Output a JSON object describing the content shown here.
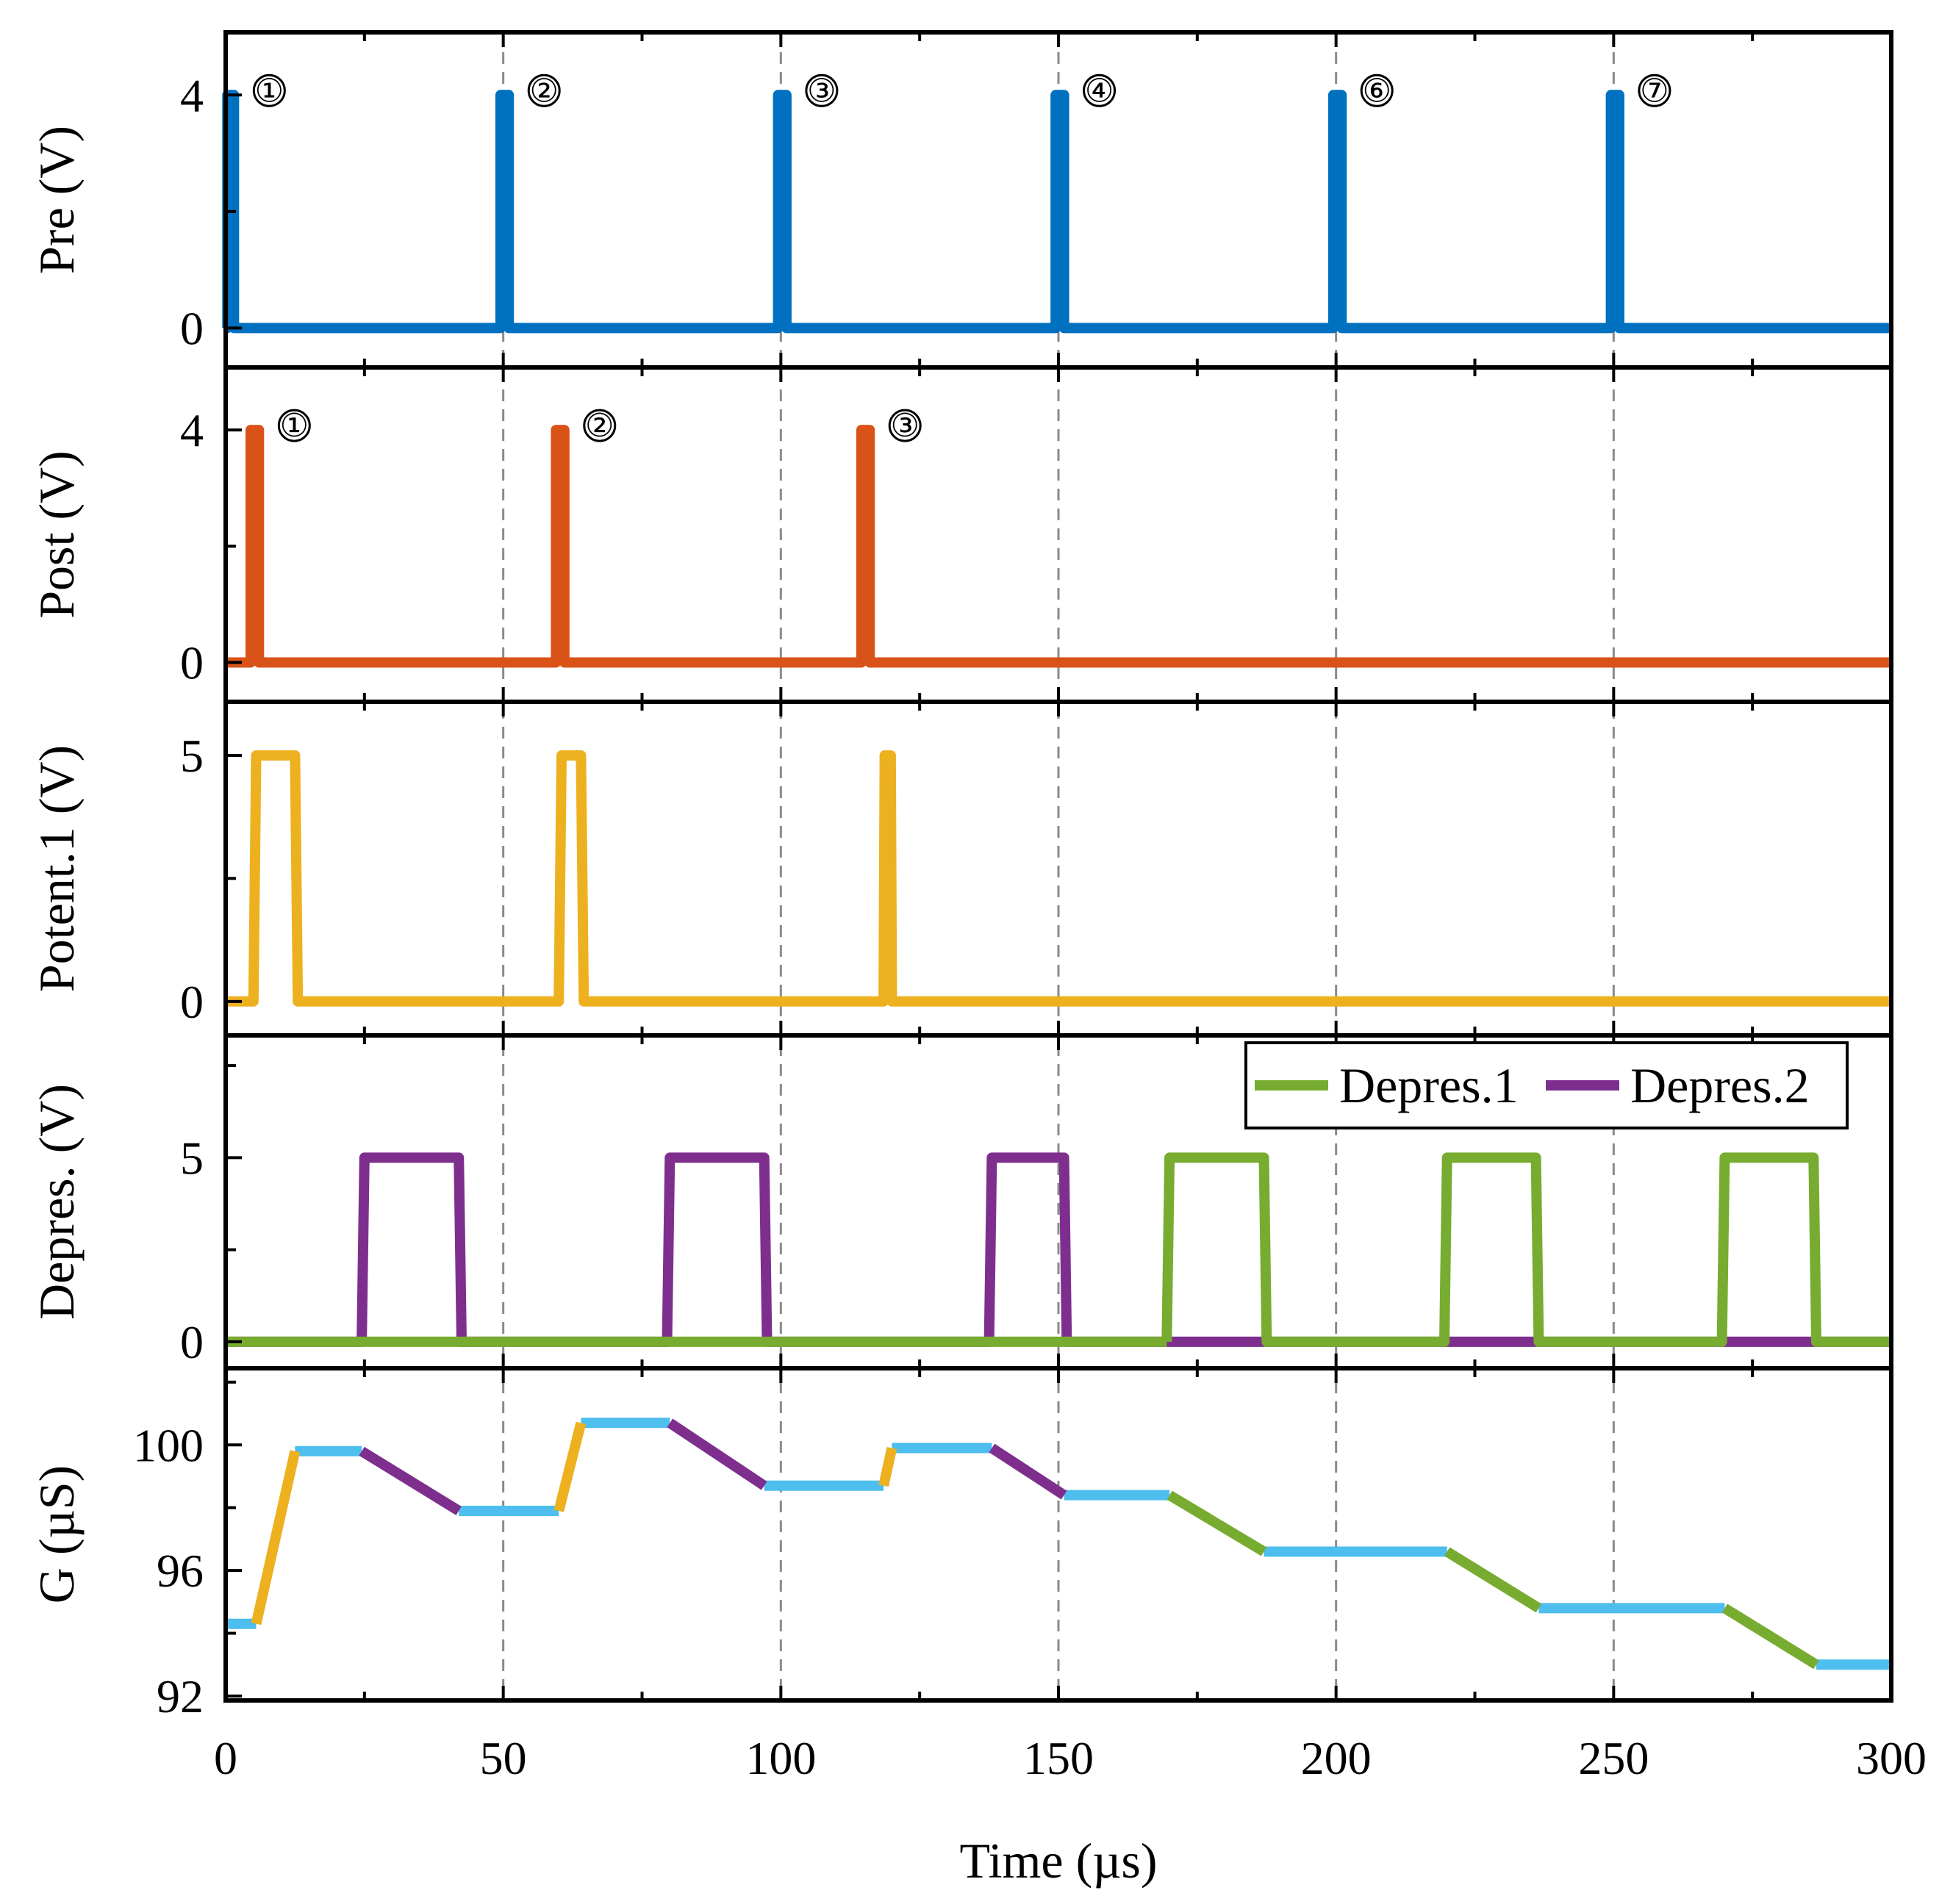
{
  "chart_data": {
    "type": "line",
    "x_axis": {
      "label": "Time (µs)",
      "range": [
        0,
        300
      ],
      "ticks": [
        0,
        50,
        100,
        150,
        200,
        250,
        300
      ],
      "tick_labels": [
        "0",
        "50",
        "100",
        "150",
        "200",
        "250",
        "300"
      ]
    },
    "dashed_verticals": [
      50,
      100,
      150,
      200,
      250
    ],
    "colors": {
      "pre": "#0070C0",
      "post": "#D95319",
      "potent": "#EDB120",
      "depres1": "#77AC30",
      "depres2": "#7E2F8E",
      "g_flat": "#4DBEEE"
    },
    "panels": [
      {
        "id": "pre",
        "ylabel": "Pre (V)",
        "ylim": [
          -0.6,
          5
        ],
        "yticks": [
          {
            "v": 0,
            "label": "0"
          },
          {
            "v": 4,
            "label": "4"
          }
        ],
        "minor_yticks": [
          2
        ],
        "series": [
          {
            "name": "Pre",
            "color_key": "pre",
            "points": [
              [
                0,
                0
              ],
              [
                0.3,
                0
              ],
              [
                0.3,
                4
              ],
              [
                1.5,
                4
              ],
              [
                1.5,
                0
              ],
              [
                49.5,
                0
              ],
              [
                49.5,
                4
              ],
              [
                51,
                4
              ],
              [
                51,
                0
              ],
              [
                99.5,
                0
              ],
              [
                99.5,
                4
              ],
              [
                101,
                4
              ],
              [
                101,
                0
              ],
              [
                149.5,
                0
              ],
              [
                149.5,
                4
              ],
              [
                151,
                4
              ],
              [
                151,
                0
              ],
              [
                199.5,
                0
              ],
              [
                199.5,
                4
              ],
              [
                201,
                4
              ],
              [
                201,
                0
              ],
              [
                249.5,
                0
              ],
              [
                249.5,
                4
              ],
              [
                251,
                4
              ],
              [
                251,
                0
              ],
              [
                300,
                0
              ]
            ]
          }
        ],
        "markers": [
          {
            "x": 1.5,
            "y": 4,
            "text": "①"
          },
          {
            "x": 51,
            "y": 4,
            "text": "②"
          },
          {
            "x": 101,
            "y": 4,
            "text": "③"
          },
          {
            "x": 151,
            "y": 4,
            "text": "④"
          },
          {
            "x": 201,
            "y": 4,
            "text": "⑥"
          },
          {
            "x": 251,
            "y": 4,
            "text": "⑦"
          }
        ]
      },
      {
        "id": "post",
        "ylabel": "Post (V)",
        "ylim": [
          -0.6,
          5
        ],
        "yticks": [
          {
            "v": 0,
            "label": "0"
          },
          {
            "v": 4,
            "label": "4"
          }
        ],
        "minor_yticks": [
          2
        ],
        "series": [
          {
            "name": "Post",
            "color_key": "post",
            "points": [
              [
                0,
                0
              ],
              [
                4.5,
                0
              ],
              [
                4.5,
                4
              ],
              [
                6,
                4
              ],
              [
                6,
                0
              ],
              [
                59.5,
                0
              ],
              [
                59.5,
                4
              ],
              [
                61,
                4
              ],
              [
                61,
                0
              ],
              [
                114.5,
                0
              ],
              [
                114.5,
                4
              ],
              [
                116,
                4
              ],
              [
                116,
                0
              ],
              [
                300,
                0
              ]
            ]
          }
        ],
        "markers": [
          {
            "x": 6,
            "y": 4,
            "text": "①"
          },
          {
            "x": 61,
            "y": 4,
            "text": "②"
          },
          {
            "x": 116,
            "y": 4,
            "text": "③"
          }
        ]
      },
      {
        "id": "potent",
        "ylabel": "Potent.1 (V)",
        "ylim": [
          -0.6,
          6
        ],
        "yticks": [
          {
            "v": 0,
            "label": "0"
          },
          {
            "v": 5,
            "label": "5"
          }
        ],
        "minor_yticks": [
          2.5
        ],
        "series": [
          {
            "name": "Potent.1",
            "color_key": "potent",
            "points": [
              [
                0,
                0
              ],
              [
                5,
                0
              ],
              [
                5.5,
                5
              ],
              [
                12.5,
                5
              ],
              [
                13,
                0
              ],
              [
                60,
                0
              ],
              [
                60.5,
                5
              ],
              [
                64,
                5
              ],
              [
                64.5,
                0
              ],
              [
                118.5,
                0
              ],
              [
                118.7,
                5
              ],
              [
                119.8,
                5
              ],
              [
                120,
                0
              ],
              [
                300,
                0
              ]
            ]
          }
        ],
        "markers": []
      },
      {
        "id": "depres",
        "ylabel": "Depres. (V)",
        "ylim": [
          -0.6,
          8.2
        ],
        "yticks": [
          {
            "v": 0,
            "label": "0"
          },
          {
            "v": 5,
            "label": "5"
          }
        ],
        "minor_yticks": [
          2.5,
          7.5
        ],
        "series": [
          {
            "name": "Depres.2",
            "color_key": "depres2",
            "points": [
              [
                0,
                0
              ],
              [
                24.5,
                0
              ],
              [
                25,
                5
              ],
              [
                42,
                5
              ],
              [
                42.5,
                0
              ],
              [
                79.5,
                0
              ],
              [
                80,
                5
              ],
              [
                97,
                5
              ],
              [
                97.5,
                0
              ],
              [
                137.5,
                0
              ],
              [
                138,
                5
              ],
              [
                151,
                5
              ],
              [
                151.5,
                0
              ],
              [
                300,
                0
              ]
            ]
          },
          {
            "name": "Depres.1",
            "color_key": "depres1",
            "segments": [
              [
                [
                  0,
                  0
                ],
                [
                  169.5,
                  0
                ]
              ],
              [
                [
                  169.5,
                  0
                ],
                [
                  170,
                  5
                ],
                [
                  187,
                  5
                ],
                [
                  187.5,
                  0
                ],
                [
                  219.5,
                  0
                ],
                [
                  220,
                  5
                ],
                [
                  236,
                  5
                ],
                [
                  236.5,
                  0
                ],
                [
                  269.5,
                  0
                ],
                [
                  270,
                  5
                ],
                [
                  286,
                  5
                ],
                [
                  286.5,
                  0
                ],
                [
                  300,
                  0
                ]
              ]
            ]
          }
        ],
        "markers": []
      },
      {
        "id": "g",
        "ylabel": "G (µS)",
        "ylim": [
          92,
          102.3
        ],
        "yticks": [
          {
            "v": 92,
            "label": "92"
          },
          {
            "v": 96,
            "label": "96"
          },
          {
            "v": 100,
            "label": "100"
          }
        ],
        "minor_yticks": [
          94,
          98,
          102
        ],
        "series": [
          {
            "name": "G-flat",
            "color_key": "g_flat",
            "segments": [
              [
                [
                  0,
                  94.3
                ],
                [
                  5.5,
                  94.3
                ]
              ],
              [
                [
                  12.5,
                  99.8
                ],
                [
                  24.5,
                  99.8
                ]
              ],
              [
                [
                  42,
                  97.9
                ],
                [
                  60,
                  97.9
                ]
              ],
              [
                [
                  64,
                  100.7
                ],
                [
                  80,
                  100.7
                ]
              ],
              [
                [
                  97,
                  98.7
                ],
                [
                  118.5,
                  98.7
                ]
              ],
              [
                [
                  120,
                  99.9
                ],
                [
                  138,
                  99.9
                ]
              ],
              [
                [
                  151,
                  98.4
                ],
                [
                  170,
                  98.4
                ]
              ],
              [
                [
                  187,
                  96.6
                ],
                [
                  220,
                  96.6
                ]
              ],
              [
                [
                  236.5,
                  94.8
                ],
                [
                  270,
                  94.8
                ]
              ],
              [
                [
                  286.5,
                  93.0
                ],
                [
                  300,
                  93.0
                ]
              ]
            ]
          },
          {
            "name": "G-potent",
            "color_key": "potent",
            "segments": [
              [
                [
                  5.5,
                  94.3
                ],
                [
                  12.5,
                  99.8
                ]
              ],
              [
                [
                  60,
                  97.9
                ],
                [
                  64,
                  100.7
                ]
              ],
              [
                [
                  118.5,
                  98.7
                ],
                [
                  120,
                  99.9
                ]
              ]
            ]
          },
          {
            "name": "G-depres2",
            "color_key": "depres2",
            "segments": [
              [
                [
                  24.5,
                  99.8
                ],
                [
                  42,
                  97.9
                ]
              ],
              [
                [
                  80,
                  100.7
                ],
                [
                  97,
                  98.7
                ]
              ],
              [
                [
                  138,
                  99.9
                ],
                [
                  151,
                  98.4
                ]
              ]
            ]
          },
          {
            "name": "G-depres1",
            "color_key": "depres1",
            "segments": [
              [
                [
                  170,
                  98.4
                ],
                [
                  187,
                  96.6
                ]
              ],
              [
                [
                  220,
                  96.6
                ],
                [
                  236.5,
                  94.8
                ]
              ],
              [
                [
                  270,
                  94.8
                ],
                [
                  286.5,
                  93.0
                ]
              ]
            ]
          }
        ],
        "markers": []
      }
    ],
    "legend": {
      "placement": "top-right of Depres. panel",
      "entries": [
        {
          "label": "Depres.1",
          "color_key": "depres1"
        },
        {
          "label": "Depres.2",
          "color_key": "depres2"
        }
      ]
    }
  }
}
